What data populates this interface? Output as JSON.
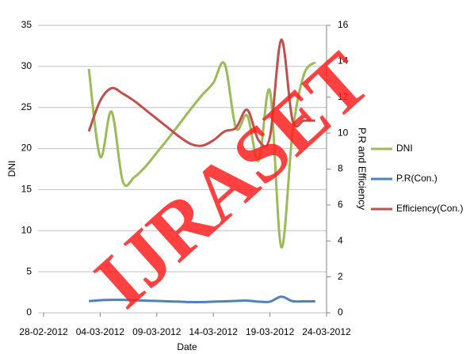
{
  "chart_data": {
    "type": "line",
    "watermark": "IJRASET",
    "x_label": "Date",
    "y_label": "DNI",
    "y2_label": "P.R and Efficiency",
    "x": [
      "03-03-2012",
      "04-03-2012",
      "05-03-2012",
      "06-03-2012",
      "07-03-2012",
      "08-03-2012",
      "09-03-2012",
      "10-03-2012",
      "11-03-2012",
      "12-03-2012",
      "13-03-2012",
      "14-03-2012",
      "15-03-2012",
      "16-03-2012",
      "17-03-2012",
      "18-03-2012",
      "19-03-2012",
      "20-03-2012",
      "21-03-2012",
      "22-03-2012",
      "23-03-2012"
    ],
    "xlim": [
      "28-02-2012",
      "24-03-2012"
    ],
    "xticks": [
      "28-02-2012",
      "04-03-2012",
      "09-03-2012",
      "14-03-2012",
      "19-03-2012",
      "24-03-2012"
    ],
    "ylim": [
      0,
      35
    ],
    "yticks": [
      0,
      5,
      10,
      15,
      20,
      25,
      30,
      35
    ],
    "y2lim": [
      0,
      16
    ],
    "y2ticks": [
      0,
      2,
      4,
      6,
      8,
      10,
      12,
      14,
      16
    ],
    "grid": true,
    "legend": "right",
    "series": [
      {
        "name": "DNI",
        "color": "#9bbb59",
        "values": [
          29.7,
          19,
          24.5,
          16,
          16.5,
          17.8,
          19.5,
          21.2,
          23,
          24.8,
          26.5,
          28,
          30.3,
          22.5,
          24,
          18.5,
          27,
          8,
          22,
          29,
          30.5
        ]
      },
      {
        "name": "P.R(Con.)",
        "color": "#4f81bd",
        "axis": "y2",
        "values": [
          0.65,
          0.7,
          0.72,
          0.72,
          0.7,
          0.68,
          0.66,
          0.64,
          0.62,
          0.6,
          0.6,
          0.62,
          0.64,
          0.66,
          0.68,
          0.62,
          0.62,
          0.9,
          0.65,
          0.64,
          0.64
        ]
      },
      {
        "name": "Efficiency(Con.)",
        "color": "#c0504d",
        "axis": "y2",
        "values": [
          10.1,
          11.8,
          12.5,
          12.2,
          11.8,
          11.3,
          10.8,
          10.3,
          9.8,
          9.4,
          9.3,
          9.6,
          10.1,
          10.3,
          11.3,
          9.6,
          9.8,
          15.2,
          10.7,
          10.7,
          10.7
        ]
      }
    ]
  }
}
